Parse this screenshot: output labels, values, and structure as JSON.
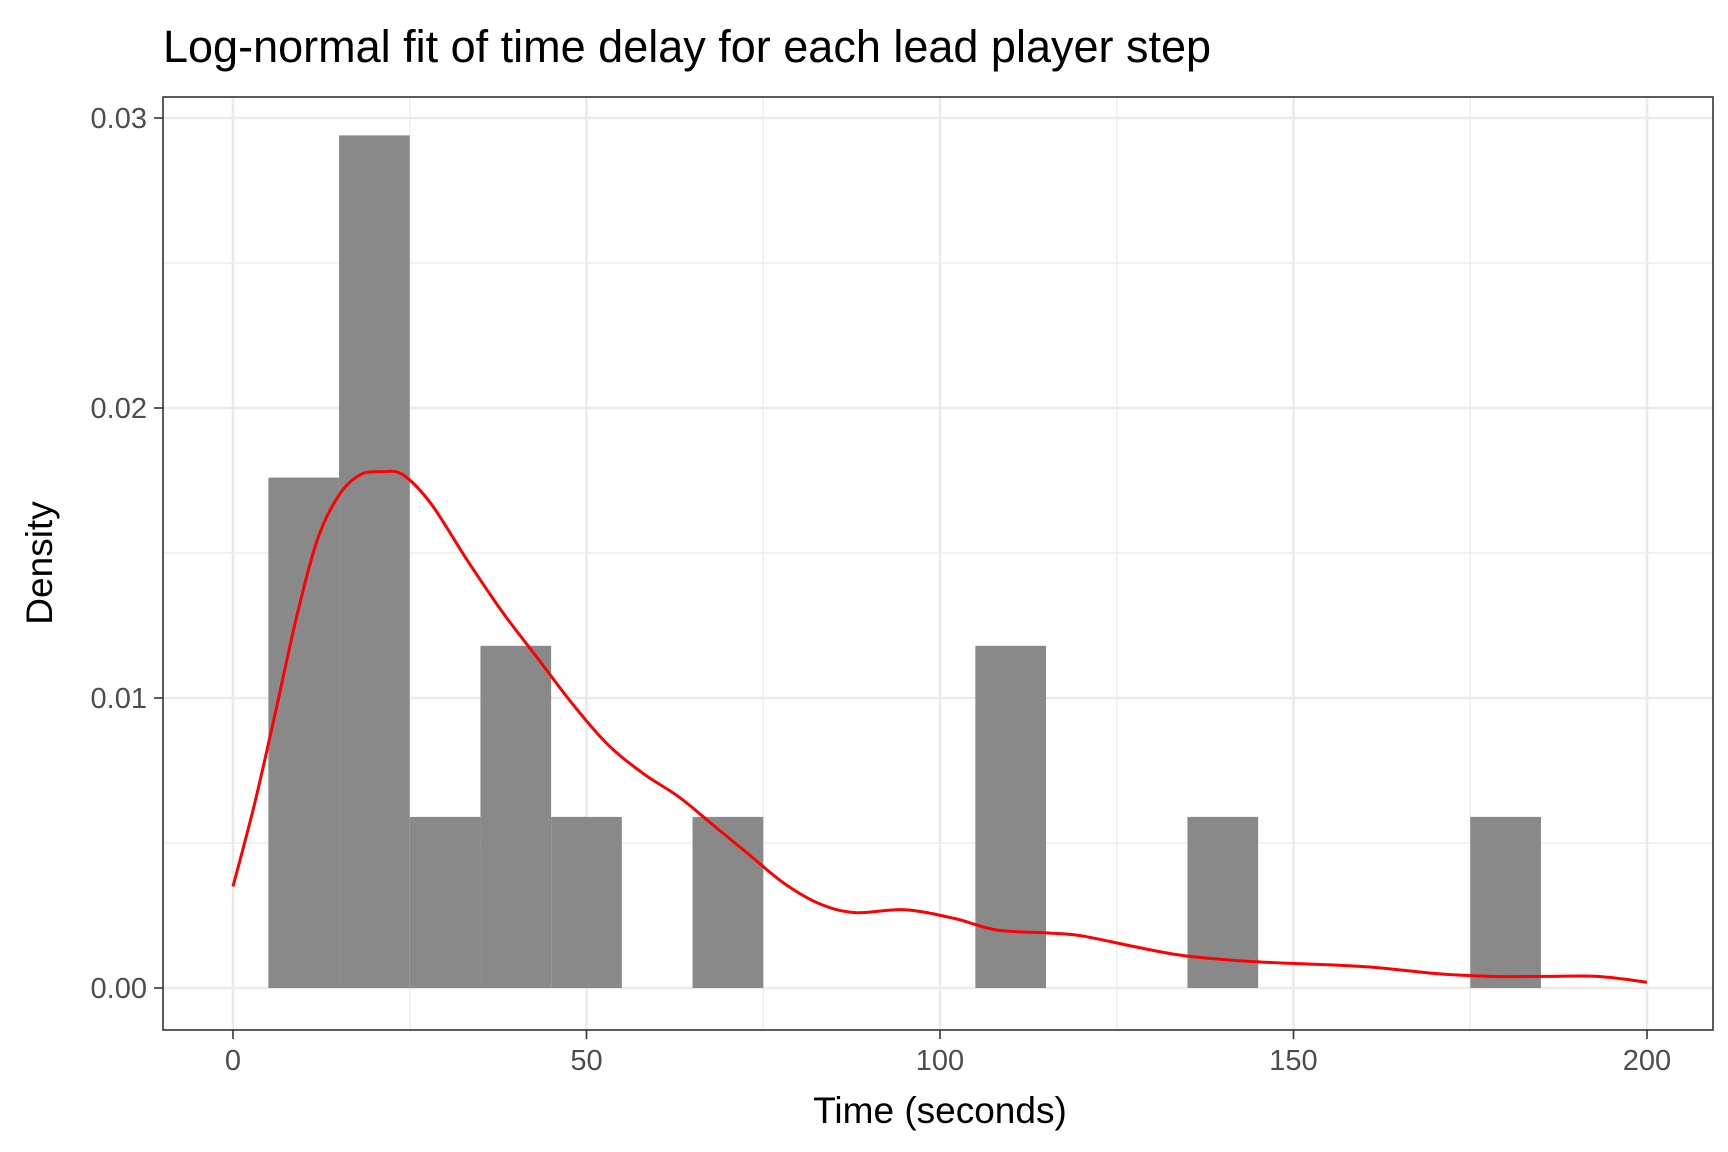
{
  "chart_data": {
    "type": "bar",
    "subtype": "histogram-with-density-curve",
    "title": "Log-normal fit of time delay for each lead player step",
    "xlabel": "Time (seconds)",
    "ylabel": "Density",
    "xlim": [
      -10,
      210
    ],
    "ylim": [
      -0.0014,
      0.0309
    ],
    "x_ticks": [
      0,
      50,
      100,
      150,
      200
    ],
    "x_tick_labels": [
      "0",
      "50",
      "100",
      "150",
      "200"
    ],
    "y_ticks": [
      0,
      0.01,
      0.02,
      0.03
    ],
    "y_tick_labels": [
      "0.00",
      "0.01",
      "0.02",
      "0.03"
    ],
    "grid": true,
    "colors": {
      "bars": "#898989",
      "curve": "#ff0000",
      "grid": "#ebebeb",
      "panel_border": "#333333"
    },
    "bins": [
      {
        "x0": 5,
        "x1": 15,
        "density": 0.0176
      },
      {
        "x0": 15,
        "x1": 25,
        "density": 0.0294
      },
      {
        "x0": 25,
        "x1": 35,
        "density": 0.0059
      },
      {
        "x0": 35,
        "x1": 45,
        "density": 0.0118
      },
      {
        "x0": 45,
        "x1": 55,
        "density": 0.0059
      },
      {
        "x0": 65,
        "x1": 75,
        "density": 0.0059
      },
      {
        "x0": 105,
        "x1": 115,
        "density": 0.0118
      },
      {
        "x0": 135,
        "x1": 145,
        "density": 0.0059
      },
      {
        "x0": 175,
        "x1": 185,
        "density": 0.0059
      }
    ],
    "series": [
      {
        "type": "line",
        "color": "#ff0000",
        "points": [
          [
            0,
            0.0035
          ],
          [
            3,
            0.0063
          ],
          [
            6,
            0.0095
          ],
          [
            9,
            0.0128
          ],
          [
            12,
            0.0155
          ],
          [
            15,
            0.017
          ],
          [
            18,
            0.0177
          ],
          [
            21,
            0.0178
          ],
          [
            24,
            0.0177
          ],
          [
            28,
            0.0167
          ],
          [
            33,
            0.0148
          ],
          [
            38,
            0.013
          ],
          [
            43,
            0.0114
          ],
          [
            48,
            0.0098
          ],
          [
            53,
            0.0084
          ],
          [
            58,
            0.0074
          ],
          [
            63,
            0.0066
          ],
          [
            68,
            0.0056
          ],
          [
            73,
            0.0046
          ],
          [
            78,
            0.0036
          ],
          [
            83,
            0.0029
          ],
          [
            88,
            0.0026
          ],
          [
            95,
            0.0027
          ],
          [
            102,
            0.0024
          ],
          [
            108,
            0.002
          ],
          [
            115,
            0.0019
          ],
          [
            120,
            0.0018
          ],
          [
            128,
            0.0014
          ],
          [
            135,
            0.0011
          ],
          [
            145,
            0.0009
          ],
          [
            155,
            0.0008
          ],
          [
            162,
            0.0007
          ],
          [
            170,
            0.0005
          ],
          [
            178,
            0.0004
          ],
          [
            186,
            0.0004
          ],
          [
            193,
            0.0004
          ],
          [
            200,
            0.0002
          ]
        ]
      }
    ]
  }
}
